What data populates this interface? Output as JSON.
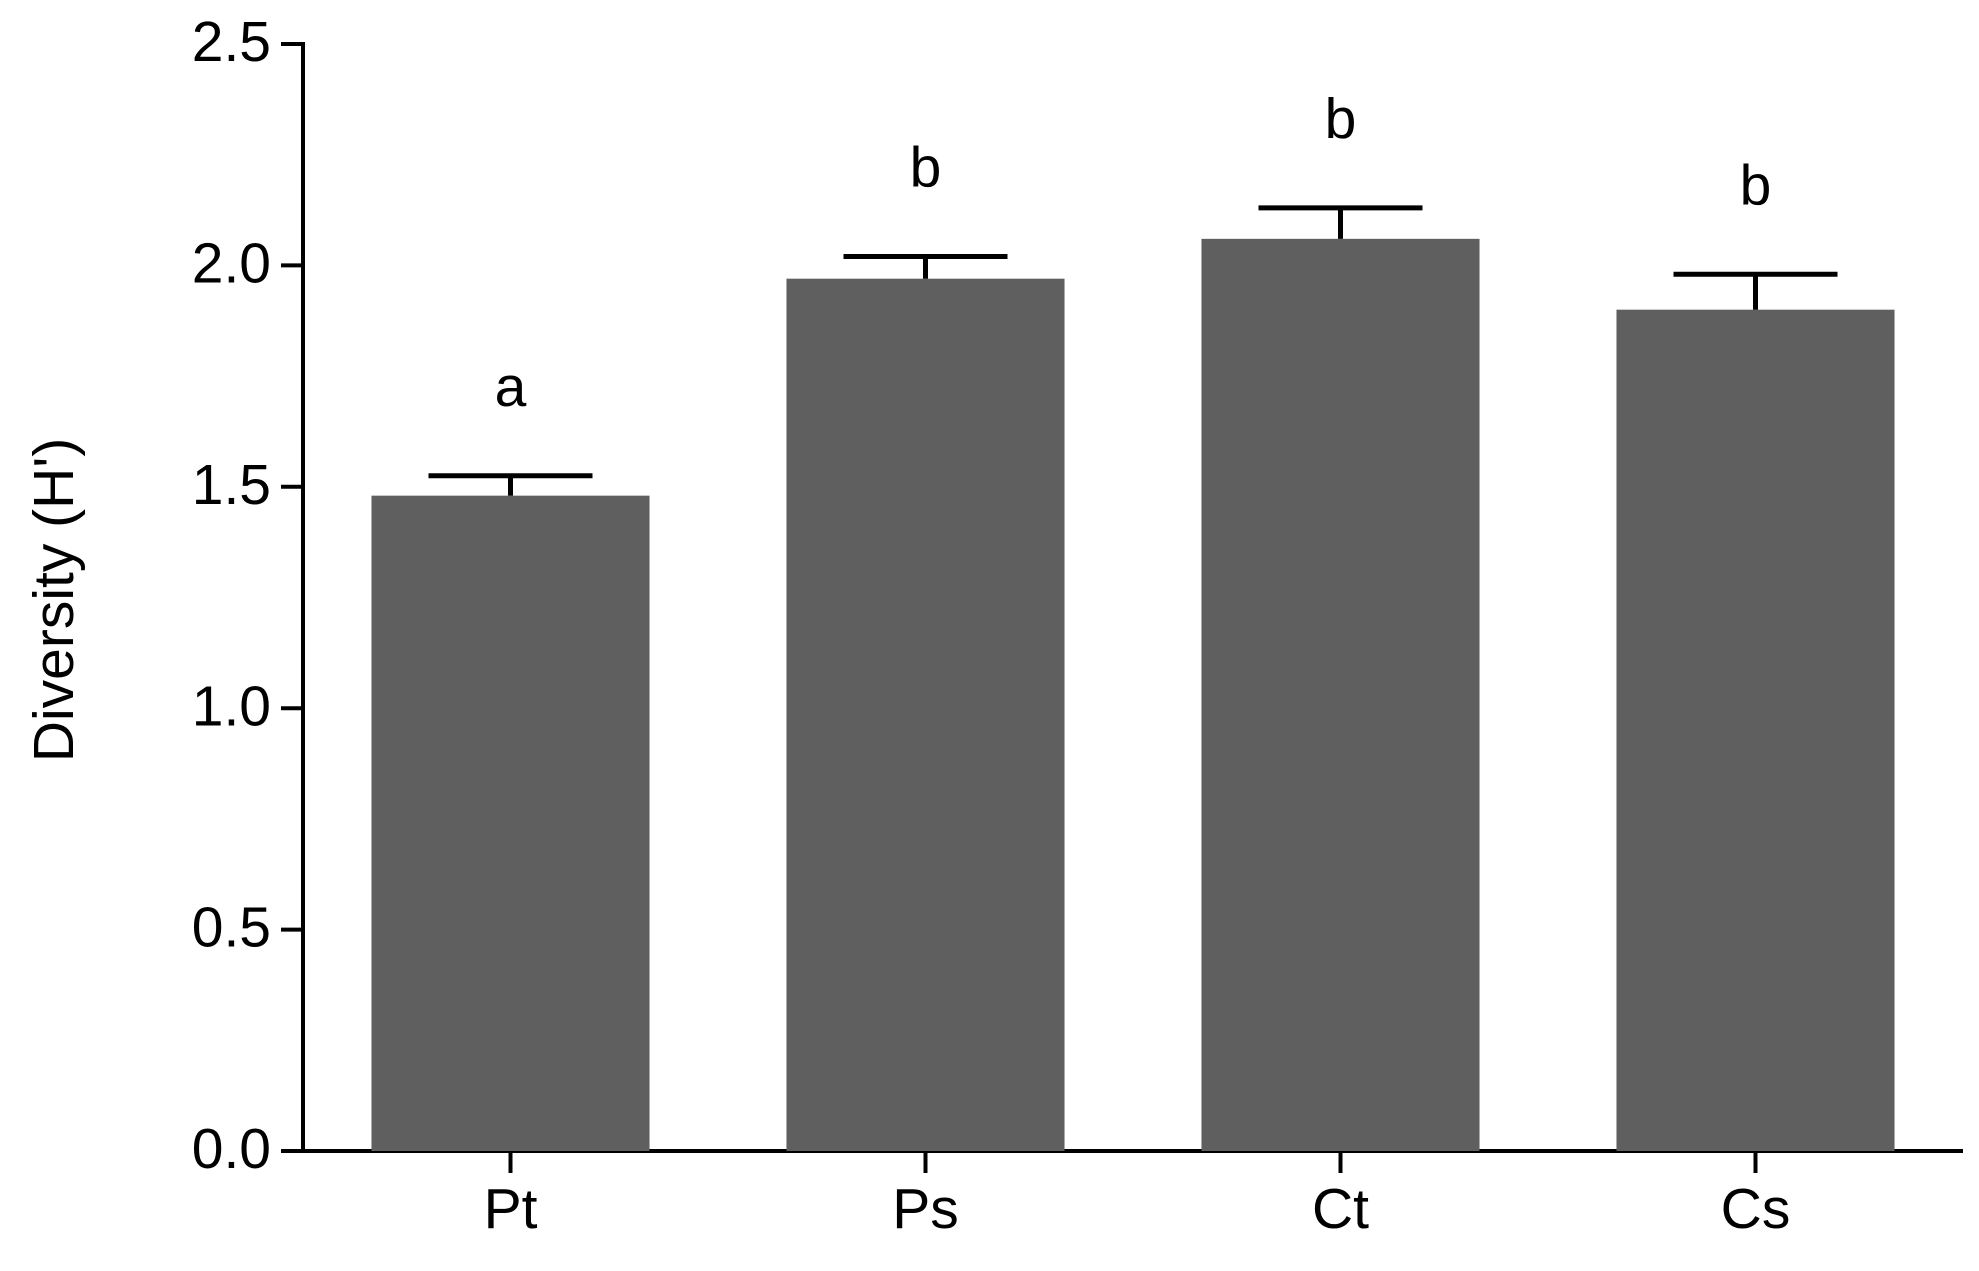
{
  "chart_data": {
    "type": "bar",
    "y_label": "Diversity (H')",
    "categories": [
      "Pt",
      "Ps",
      "Ct",
      "Cs"
    ],
    "values": [
      1.48,
      1.97,
      2.06,
      1.9
    ],
    "errors": [
      0.045,
      0.05,
      0.07,
      0.08
    ],
    "significance_labels": [
      "a",
      "b",
      "b",
      "b"
    ],
    "color": "#5f5f5f",
    "ylim": [
      0,
      2.5
    ],
    "yticks": [
      {
        "value": 0,
        "label": "0.0"
      },
      {
        "value": 0.5,
        "label": "0.5"
      },
      {
        "value": 1,
        "label": "1.0"
      },
      {
        "value": 1.5,
        "label": "1.5"
      },
      {
        "value": 2,
        "label": "2.0"
      },
      {
        "value": 2.5,
        "label": "2.5"
      }
    ],
    "grid": false
  }
}
